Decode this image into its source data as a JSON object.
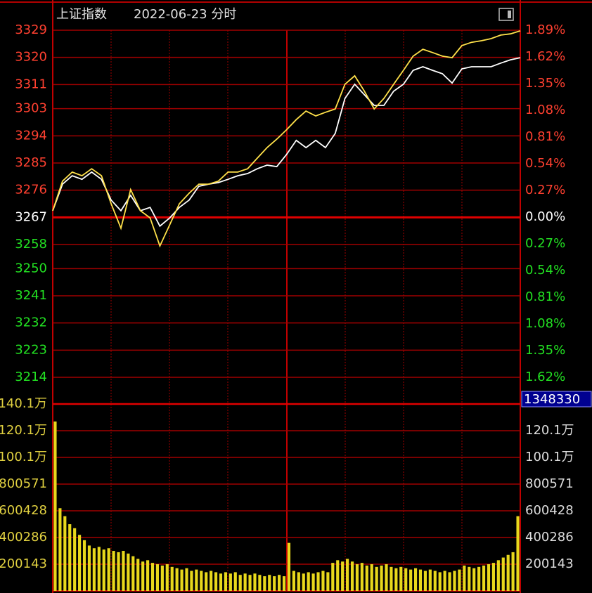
{
  "chart_data": [
    {
      "type": "line",
      "title": "上证指数",
      "subtitle": "2022-06-23 分时",
      "series": [
        {
          "color": "#ffffff",
          "values": [
            3269.2,
            3278.0,
            3280.8,
            3279.6,
            3282.0,
            3279.6,
            3272.7,
            3269.2,
            3274.3,
            3269.2,
            3270.3,
            3264.1,
            3266.8,
            3270.3,
            3272.7,
            3277.3,
            3278.0,
            3278.5,
            3279.6,
            3280.8,
            3281.5,
            3283.1,
            3284.3,
            3283.8,
            3287.8,
            3292.5,
            3290.1,
            3292.5,
            3290.1,
            3294.8,
            3306.4,
            3311.1,
            3307.6,
            3304.1,
            3304.1,
            3308.8,
            3311.1,
            3315.7,
            3316.9,
            3315.7,
            3314.6,
            3311.5,
            3316.2,
            3316.9,
            3316.9,
            3316.9,
            3318.1,
            3319.2,
            3319.9
          ]
        },
        {
          "color": "#ffe14a",
          "values": [
            3269.2,
            3279.0,
            3282.0,
            3280.8,
            3283.1,
            3280.8,
            3271.5,
            3263.4,
            3276.2,
            3269.2,
            3266.8,
            3257.5,
            3264.5,
            3271.5,
            3275.0,
            3278.0,
            3278.0,
            3279.0,
            3282.0,
            3282.0,
            3283.1,
            3286.6,
            3290.1,
            3292.9,
            3296.0,
            3299.4,
            3302.2,
            3300.6,
            3301.8,
            3302.9,
            3311.1,
            3313.9,
            3308.8,
            3302.9,
            3306.4,
            3311.1,
            3315.7,
            3320.4,
            3322.7,
            3321.6,
            3320.4,
            3319.9,
            3323.9,
            3325.0,
            3325.5,
            3326.2,
            3327.4,
            3327.8,
            3328.8
          ]
        }
      ],
      "ylim": [
        3214,
        3329
      ],
      "yticks": [
        3329,
        3320,
        3311,
        3303,
        3294,
        3285,
        3276,
        3267,
        3258,
        3250,
        3241,
        3232,
        3223,
        3214
      ],
      "y2lim": [
        -1.62,
        1.89
      ],
      "y2ticks": [
        {
          "value": 1.89,
          "label": "1.89%"
        },
        {
          "value": 1.62,
          "label": "1.62%"
        },
        {
          "value": 1.35,
          "label": "1.35%"
        },
        {
          "value": 1.08,
          "label": "1.08%"
        },
        {
          "value": 0.81,
          "label": "0.81%"
        },
        {
          "value": 0.54,
          "label": "0.54%"
        },
        {
          "value": 0.27,
          "label": "0.27%"
        },
        {
          "value": 0,
          "label": "0.00%"
        },
        {
          "value": -0.27,
          "label": "0.27%"
        },
        {
          "value": -0.54,
          "label": "0.54%"
        },
        {
          "value": -0.81,
          "label": "0.81%"
        },
        {
          "value": -1.08,
          "label": "1.08%"
        },
        {
          "value": -1.35,
          "label": "1.35%"
        },
        {
          "value": -1.62,
          "label": "1.62%"
        }
      ],
      "grid": true,
      "up_color": "#ff4030",
      "down_color": "#22e022",
      "flat_color": "#ffffff"
    },
    {
      "type": "bar",
      "color": "#e8d81c",
      "volume_readout": 1348330,
      "values": [
        1270000,
        620000,
        560000,
        500000,
        470000,
        420000,
        380000,
        340000,
        320000,
        330000,
        310000,
        320000,
        300000,
        290000,
        300000,
        280000,
        260000,
        240000,
        220000,
        230000,
        210000,
        200000,
        190000,
        200000,
        180000,
        170000,
        160000,
        170000,
        150000,
        160000,
        150000,
        140000,
        150000,
        140000,
        130000,
        140000,
        130000,
        140000,
        120000,
        130000,
        120000,
        130000,
        120000,
        110000,
        120000,
        110000,
        120000,
        110000,
        360000,
        150000,
        140000,
        130000,
        140000,
        130000,
        140000,
        150000,
        140000,
        210000,
        230000,
        220000,
        240000,
        220000,
        200000,
        210000,
        190000,
        200000,
        180000,
        190000,
        200000,
        180000,
        170000,
        180000,
        170000,
        160000,
        170000,
        160000,
        150000,
        160000,
        150000,
        140000,
        150000,
        140000,
        150000,
        160000,
        190000,
        180000,
        170000,
        180000,
        190000,
        200000,
        210000,
        230000,
        250000,
        270000,
        290000,
        560000
      ],
      "ylim": [
        0,
        1401001
      ],
      "yticks": [
        200143,
        400286,
        600428,
        800571,
        {
          "value": 1000715,
          "label": "100.1万"
        },
        {
          "value": 1200858,
          "label": "120.1万"
        },
        {
          "value": 1401001,
          "label": "140.1万"
        }
      ],
      "grid": true
    }
  ]
}
